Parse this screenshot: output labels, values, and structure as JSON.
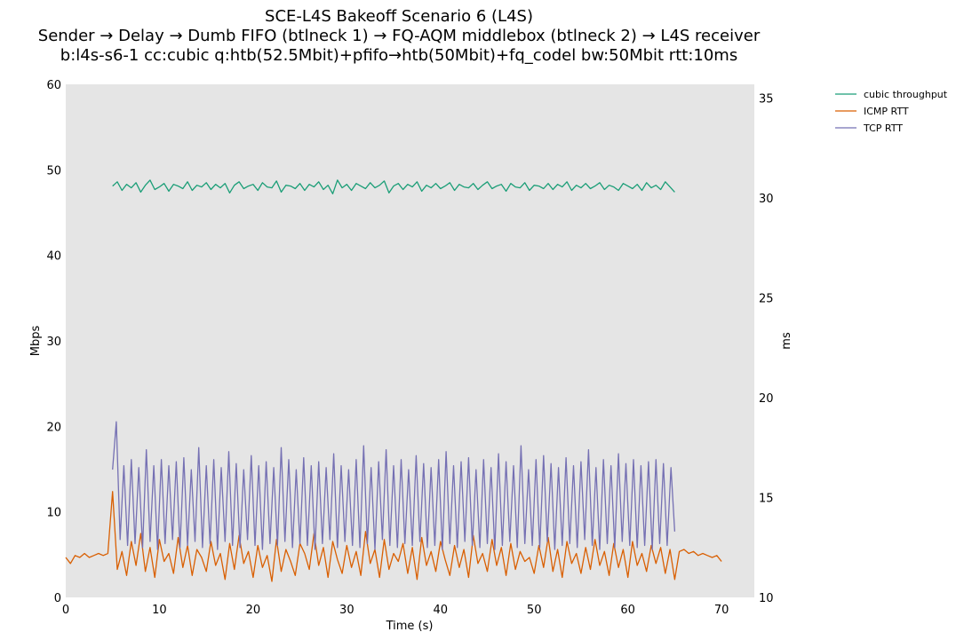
{
  "chart_data": {
    "type": "line",
    "title": [
      "SCE-L4S Bakeoff Scenario 6 (L4S)",
      "Sender → Delay → Dumb FIFO (btlneck 1) → FQ-AQM middlebox (btlneck 2) → L4S receiver",
      "b:l4s-s6-1 cc:cubic q:htb(52.5Mbit)+pfifo→htb(50Mbit)+fq_codel bw:50Mbit rtt:10ms"
    ],
    "xlabel": "Time (s)",
    "ylabel_left": "Mbps",
    "ylabel_right": "ms",
    "xlim": [
      0,
      73.5
    ],
    "ylim_left": [
      0,
      60
    ],
    "ylim_right": [
      10,
      35.7
    ],
    "xticks": [
      0,
      10,
      20,
      30,
      40,
      50,
      60,
      70
    ],
    "yticks_left": [
      0,
      10,
      20,
      30,
      40,
      50,
      60
    ],
    "yticks_right": [
      10,
      15,
      20,
      25,
      30,
      35
    ],
    "grid": false,
    "legend_position": "outside-top-right",
    "colors": {
      "background": "#e5e5e5",
      "cubic": "#1b9e77",
      "icmp": "#d95f02",
      "tcp": "#7570b3"
    },
    "series": [
      {
        "name": "cubic throughput",
        "axis": "left",
        "color": "#1b9e77",
        "x_start": 5.0,
        "x_step": 0.5,
        "values": [
          48.1,
          48.6,
          47.6,
          48.3,
          47.9,
          48.5,
          47.4,
          48.2,
          48.8,
          47.7,
          48.0,
          48.4,
          47.5,
          48.3,
          48.1,
          47.8,
          48.6,
          47.6,
          48.2,
          48.0,
          48.5,
          47.7,
          48.3,
          47.9,
          48.4,
          47.3,
          48.2,
          48.6,
          47.8,
          48.1,
          48.3,
          47.6,
          48.5,
          48.0,
          47.9,
          48.7,
          47.4,
          48.2,
          48.1,
          47.8,
          48.4,
          47.6,
          48.3,
          48.0,
          48.6,
          47.7,
          48.2,
          47.2,
          48.8,
          47.9,
          48.3,
          47.6,
          48.4,
          48.1,
          47.8,
          48.5,
          47.9,
          48.2,
          48.7,
          47.3,
          48.1,
          48.4,
          47.7,
          48.3,
          48.0,
          48.6,
          47.5,
          48.2,
          47.9,
          48.4,
          47.8,
          48.1,
          48.5,
          47.6,
          48.3,
          48.0,
          47.9,
          48.4,
          47.7,
          48.2,
          48.6,
          47.8,
          48.1,
          48.3,
          47.5,
          48.4,
          48.0,
          47.9,
          48.5,
          47.6,
          48.2,
          48.1,
          47.8,
          48.4,
          47.7,
          48.3,
          48.0,
          48.6,
          47.6,
          48.2,
          47.9,
          48.4,
          47.8,
          48.1,
          48.5,
          47.7,
          48.2,
          48.0,
          47.6,
          48.4,
          48.1,
          47.8,
          48.3,
          47.6,
          48.5,
          47.9,
          48.2,
          47.7,
          48.6,
          48.0,
          47.4
        ]
      },
      {
        "name": "ICMP RTT",
        "axis": "right",
        "color": "#d95f02",
        "x_start": 0.0,
        "x_step": 0.5,
        "values": [
          12.0,
          11.7,
          12.1,
          12.0,
          12.2,
          12.0,
          12.1,
          12.2,
          12.1,
          12.2,
          15.3,
          11.4,
          12.3,
          11.1,
          12.8,
          11.6,
          13.2,
          11.3,
          12.5,
          11.0,
          12.9,
          11.8,
          12.2,
          11.2,
          13.0,
          11.5,
          12.6,
          11.1,
          12.4,
          12.0,
          11.3,
          12.8,
          11.6,
          12.2,
          10.9,
          12.7,
          11.4,
          13.1,
          11.7,
          12.3,
          11.0,
          12.6,
          11.5,
          12.1,
          10.8,
          12.9,
          11.3,
          12.4,
          11.8,
          11.1,
          12.7,
          12.2,
          11.4,
          13.2,
          11.6,
          12.5,
          11.0,
          12.8,
          11.9,
          11.2,
          12.6,
          11.5,
          12.3,
          11.1,
          13.3,
          11.7,
          12.4,
          11.0,
          12.9,
          11.4,
          12.2,
          11.8,
          12.7,
          11.2,
          12.5,
          10.9,
          13.0,
          11.6,
          12.3,
          11.3,
          12.8,
          11.9,
          11.1,
          12.6,
          11.5,
          12.4,
          11.0,
          13.1,
          11.7,
          12.2,
          11.3,
          12.9,
          11.6,
          12.5,
          11.1,
          12.7,
          11.4,
          12.3,
          11.8,
          12.0,
          11.2,
          12.6,
          11.5,
          13.0,
          11.3,
          12.4,
          11.0,
          12.8,
          11.7,
          12.2,
          11.2,
          12.5,
          11.4,
          12.9,
          11.6,
          12.3,
          11.1,
          12.7,
          11.5,
          12.4,
          11.0,
          12.8,
          11.6,
          12.2,
          11.3,
          12.6,
          11.7,
          12.5,
          11.2,
          12.4,
          10.9,
          12.3,
          12.4,
          12.2,
          12.3,
          12.1,
          12.2,
          12.1,
          12.0,
          12.1,
          11.8
        ]
      },
      {
        "name": "TCP RTT",
        "axis": "right",
        "color": "#7570b3",
        "x_start": 5.0,
        "x_step": 0.4,
        "values": [
          16.4,
          18.8,
          12.9,
          16.6,
          12.6,
          16.9,
          12.7,
          16.5,
          12.5,
          17.4,
          12.8,
          16.6,
          12.4,
          16.9,
          12.7,
          16.6,
          12.9,
          16.8,
          12.5,
          17.0,
          12.6,
          16.4,
          12.8,
          17.5,
          12.5,
          16.6,
          12.7,
          16.9,
          12.4,
          16.5,
          12.8,
          17.3,
          12.6,
          16.7,
          12.5,
          16.4,
          12.9,
          17.1,
          12.6,
          16.6,
          12.4,
          16.8,
          12.7,
          16.5,
          12.6,
          17.5,
          12.8,
          16.9,
          12.5,
          16.4,
          12.7,
          17.0,
          12.6,
          16.6,
          12.4,
          16.8,
          12.7,
          16.5,
          12.9,
          17.2,
          12.5,
          16.6,
          12.8,
          16.4,
          12.6,
          16.9,
          12.5,
          17.6,
          12.7,
          16.5,
          12.4,
          16.8,
          12.9,
          17.4,
          12.6,
          16.6,
          12.5,
          16.9,
          12.7,
          16.4,
          12.6,
          17.1,
          12.8,
          16.7,
          12.5,
          16.5,
          12.6,
          16.9,
          12.4,
          17.3,
          12.7,
          16.6,
          12.5,
          16.8,
          12.8,
          17.0,
          12.6,
          16.4,
          12.5,
          16.9,
          12.7,
          16.5,
          12.4,
          17.2,
          12.6,
          16.8,
          12.8,
          16.6,
          12.5,
          17.6,
          12.7,
          16.4,
          12.6,
          16.9,
          12.5,
          17.1,
          12.8,
          16.7,
          12.4,
          16.5,
          12.6,
          17.0,
          12.7,
          16.6,
          12.5,
          16.8,
          12.9,
          17.4,
          12.6,
          16.5,
          12.4,
          16.9,
          12.7,
          16.6,
          12.5,
          17.2,
          12.8,
          16.7,
          12.6,
          16.9,
          12.5,
          16.6,
          12.6,
          16.8,
          12.4,
          16.9,
          12.7,
          16.7,
          12.6,
          16.5,
          13.3
        ]
      }
    ]
  }
}
